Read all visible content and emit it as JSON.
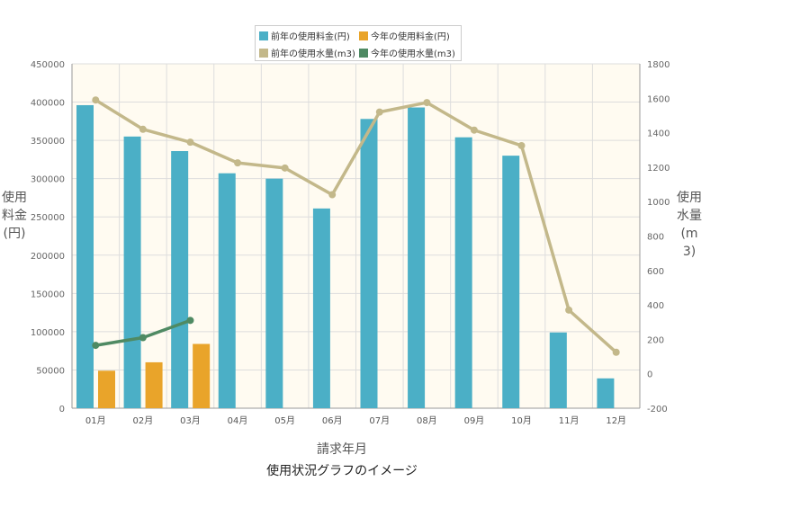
{
  "chart_data": {
    "type": "bar",
    "categories": [
      "01月",
      "02月",
      "03月",
      "04月",
      "05月",
      "06月",
      "07月",
      "08月",
      "09月",
      "10月",
      "11月",
      "12月"
    ],
    "series": [
      {
        "name": "前年の使用料金(円)",
        "kind": "bar",
        "axis": "left",
        "color": "#4bafc6",
        "values": [
          396000,
          355000,
          336000,
          307000,
          300000,
          261000,
          378000,
          393000,
          354000,
          330000,
          99000,
          39000
        ]
      },
      {
        "name": "今年の使用料金(円)",
        "kind": "bar",
        "axis": "left",
        "color": "#e9a42a",
        "values": [
          49000,
          60000,
          84000,
          null,
          null,
          null,
          null,
          null,
          null,
          null,
          null,
          null
        ]
      },
      {
        "name": "前年の使用水量(m3)",
        "kind": "line",
        "axis": "right",
        "color": "#c3b88a",
        "values": [
          1590,
          1420,
          1345,
          1225,
          1195,
          1040,
          1520,
          1575,
          1415,
          1325,
          370,
          125
        ]
      },
      {
        "name": "今年の使用水量(m3)",
        "kind": "line",
        "axis": "right",
        "color": "#4f8a63",
        "values": [
          165,
          210,
          310,
          null,
          null,
          null,
          null,
          null,
          null,
          null,
          null,
          null
        ]
      }
    ],
    "xlabel": "請求年月",
    "ylabel_left": "使用料金(円)",
    "ylabel_right": "使用水量(m3)",
    "ylim_left": [
      0,
      450000
    ],
    "ylim_right": [
      -200,
      1800
    ],
    "yticks_left": [
      "0",
      "50000",
      "100000",
      "150000",
      "200000",
      "250000",
      "300000",
      "350000",
      "400000",
      "450000"
    ],
    "yticks_right": [
      "-200",
      "0",
      "200",
      "400",
      "600",
      "800",
      "1000",
      "1200",
      "1400",
      "1600",
      "1800"
    ],
    "grid": true,
    "legend_position": "top-center",
    "plot_background": "#fffbf1"
  },
  "caption": "使用状況グラフのイメージ"
}
